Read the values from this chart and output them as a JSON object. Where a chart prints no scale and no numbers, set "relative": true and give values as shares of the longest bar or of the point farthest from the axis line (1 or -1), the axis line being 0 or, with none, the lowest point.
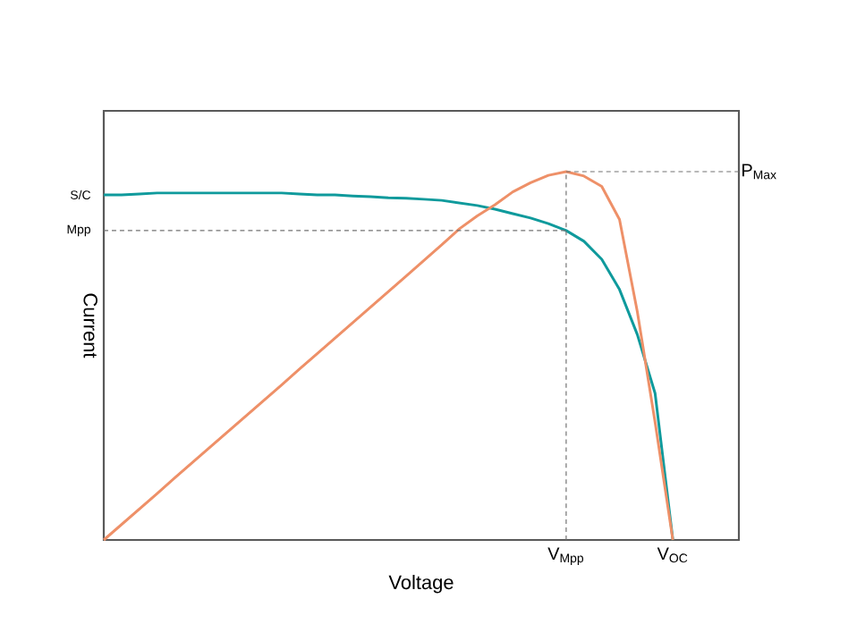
{
  "chart_data": {
    "type": "line",
    "relative": true,
    "xlabel": "Voltage",
    "ylabel": "Current",
    "marker": "none",
    "line_style": "solid",
    "categories": [
      null,
      null,
      null,
      null,
      null,
      null,
      null,
      null,
      null,
      null,
      null,
      null,
      null,
      null,
      null,
      null,
      null,
      null,
      null,
      null,
      null,
      null,
      null,
      null,
      null,
      null,
      null,
      null,
      null,
      null,
      null,
      null,
      null
    ],
    "series": [
      {
        "color": "#0f9a9c",
        "values": [
          0.937,
          0.937,
          0.939,
          0.942,
          0.942,
          0.942,
          0.942,
          0.942,
          0.942,
          0.942,
          0.942,
          0.939,
          0.937,
          0.937,
          0.934,
          0.932,
          0.929,
          0.928,
          0.925,
          0.922,
          0.915,
          0.908,
          0.898,
          0.886,
          0.874,
          0.859,
          0.84,
          0.811,
          0.762,
          0.68,
          0.558,
          0.398,
          0
        ]
      },
      {
        "color": "#ee9068",
        "values": [
          0,
          0.042,
          0.084,
          0.126,
          0.169,
          0.211,
          0.253,
          0.295,
          0.337,
          0.379,
          0.421,
          0.464,
          0.506,
          0.548,
          0.59,
          0.632,
          0.674,
          0.716,
          0.759,
          0.801,
          0.845,
          0.88,
          0.91,
          0.945,
          0.97,
          0.99,
          1,
          0.988,
          0.96,
          0.87,
          0.62,
          0.32,
          0
        ]
      }
    ],
    "ref_lines": [
      {
        "axis": "y",
        "value": 0.84,
        "label": "Mpp",
        "line_style": "dashed"
      },
      {
        "axis": "y",
        "value": 1,
        "label": "P$_{Max}$",
        "line_style": "dashed"
      }
    ],
    "annotations": [
      "S/C",
      "V$_{Mpp}$",
      "V$_{OC}$"
    ]
  }
}
